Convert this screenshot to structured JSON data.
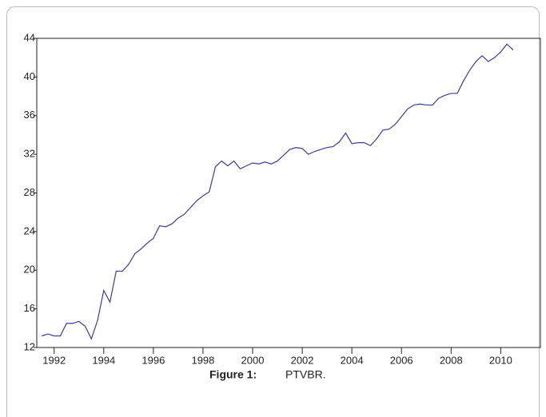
{
  "chart_data": {
    "type": "line",
    "caption_label": "Figure 1:",
    "caption": "PTVBR.",
    "x": [
      1991.5,
      1991.75,
      1992,
      1992.25,
      1992.5,
      1992.75,
      1993,
      1993.25,
      1993.5,
      1993.75,
      1994,
      1994.25,
      1994.5,
      1994.75,
      1995,
      1995.25,
      1995.5,
      1995.75,
      1996,
      1996.25,
      1996.5,
      1996.75,
      1997,
      1997.25,
      1997.5,
      1997.75,
      1998,
      1998.25,
      1998.5,
      1998.75,
      1999,
      1999.25,
      1999.5,
      1999.75,
      2000,
      2000.25,
      2000.5,
      2000.75,
      2001,
      2001.25,
      2001.5,
      2001.75,
      2002,
      2002.25,
      2002.5,
      2002.75,
      2003,
      2003.25,
      2003.5,
      2003.75,
      2004,
      2004.25,
      2004.5,
      2004.75,
      2005,
      2005.25,
      2005.5,
      2005.75,
      2006,
      2006.25,
      2006.5,
      2006.75,
      2007,
      2007.25,
      2007.5,
      2007.75,
      2008,
      2008.25,
      2008.5,
      2008.75,
      2009,
      2009.25,
      2009.5,
      2009.75,
      2010,
      2010.25,
      2010.5
    ],
    "values": [
      13.2,
      13.4,
      13.2,
      13.2,
      14.5,
      14.5,
      14.7,
      14.2,
      12.9,
      14.8,
      17.9,
      16.7,
      19.9,
      19.9,
      20.6,
      21.7,
      22.2,
      22.8,
      23.3,
      24.6,
      24.5,
      24.8,
      25.4,
      25.8,
      26.5,
      27.2,
      27.7,
      28.1,
      30.7,
      31.3,
      30.8,
      31.3,
      30.5,
      30.8,
      31.1,
      31.0,
      31.2,
      31.0,
      31.3,
      31.9,
      32.5,
      32.7,
      32.6,
      32.0,
      32.3,
      32.5,
      32.7,
      32.8,
      33.3,
      34.2,
      33.1,
      33.2,
      33.2,
      32.9,
      33.6,
      34.5,
      34.6,
      35.1,
      35.9,
      36.7,
      37.1,
      37.2,
      37.1,
      37.1,
      37.8,
      38.1,
      38.3,
      38.3,
      39.6,
      40.7,
      41.6,
      42.2,
      41.6,
      42.0,
      42.6,
      43.4,
      42.8
    ],
    "color": "#3c3c9c",
    "xlim": [
      1991.3,
      2011.6
    ],
    "xticks": [
      1992,
      1994,
      1996,
      1998,
      2000,
      2002,
      2004,
      2006,
      2008,
      2010
    ],
    "ylim": [
      12,
      44
    ],
    "yticks": [
      12,
      16,
      20,
      24,
      28,
      32,
      36,
      40,
      44
    ]
  }
}
